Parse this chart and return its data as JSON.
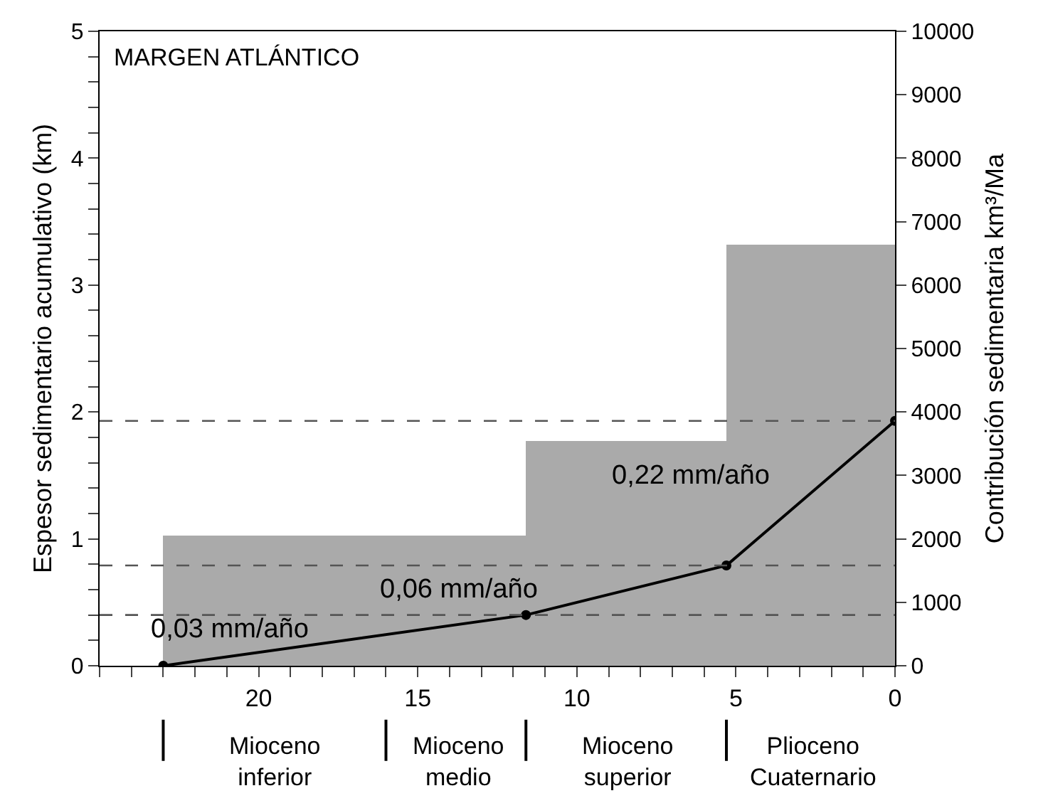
{
  "chart_data": {
    "type": "histogram",
    "title": "MARGEN ATLÁNTICO",
    "xlabel": null,
    "ylabel": "Espesor sedimentario acumulativo (km)",
    "y2label": "Contribución sedimentaria km³/Ma",
    "series": [
      {
        "axis": "y2",
        "color": "#aaaaaa",
        "bins": [
          23,
          11.6,
          5.3,
          0
        ],
        "values": [
          2050,
          3540,
          6640
        ]
      },
      {
        "type": "line",
        "color": "#000000",
        "marker": "circle",
        "line_style": "solid",
        "x": [
          23,
          11.6,
          5.3,
          0
        ],
        "values": [
          0,
          0.4,
          0.79,
          1.93
        ]
      }
    ],
    "ref_lines": [
      {
        "axis": "y",
        "value": 0.4,
        "color": "#555555",
        "line_style": "dashed"
      },
      {
        "axis": "y",
        "value": 0.79,
        "color": "#555555",
        "line_style": "dashed"
      },
      {
        "axis": "y",
        "value": 1.93,
        "color": "#555555",
        "line_style": "dashed"
      }
    ],
    "annotations": [
      "0,03 mm/año",
      "0,06 mm/año",
      "0,22 mm/año",
      "Mioceno inferior",
      "Mioceno medio",
      "Mioceno superior",
      "Plioceno Cuaternario"
    ],
    "xlim": [
      25,
      0
    ],
    "xticks": [
      {
        "value": 25,
        "label": null
      },
      {
        "value": 24,
        "label": null
      },
      {
        "value": 23,
        "label": null
      },
      {
        "value": 22,
        "label": null
      },
      {
        "value": 21,
        "label": null
      },
      20,
      {
        "value": 19,
        "label": null
      },
      {
        "value": 18,
        "label": null
      },
      {
        "value": 17,
        "label": null
      },
      {
        "value": 16,
        "label": null
      },
      15,
      {
        "value": 14,
        "label": null
      },
      {
        "value": 13,
        "label": null
      },
      {
        "value": 12,
        "label": null
      },
      {
        "value": 11,
        "label": null
      },
      10,
      {
        "value": 9,
        "label": null
      },
      {
        "value": 8,
        "label": null
      },
      {
        "value": 7,
        "label": null
      },
      {
        "value": 6,
        "label": null
      },
      5,
      {
        "value": 4,
        "label": null
      },
      {
        "value": 3,
        "label": null
      },
      {
        "value": 2,
        "label": null
      },
      {
        "value": 1,
        "label": null
      },
      0
    ],
    "ylim": [
      0,
      5
    ],
    "yticks": [
      0,
      {
        "value": 0.2,
        "label": null
      },
      {
        "value": 0.4,
        "label": null
      },
      {
        "value": 0.6,
        "label": null
      },
      {
        "value": 0.8,
        "label": null
      },
      1,
      {
        "value": 1.2,
        "label": null
      },
      {
        "value": 1.4,
        "label": null
      },
      {
        "value": 1.6,
        "label": null
      },
      {
        "value": 1.8,
        "label": null
      },
      2,
      {
        "value": 2.2,
        "label": null
      },
      {
        "value": 2.4,
        "label": null
      },
      {
        "value": 2.6,
        "label": null
      },
      {
        "value": 2.8,
        "label": null
      },
      3,
      {
        "value": 3.2,
        "label": null
      },
      {
        "value": 3.4,
        "label": null
      },
      {
        "value": 3.6,
        "label": null
      },
      {
        "value": 3.8,
        "label": null
      },
      4,
      {
        "value": 4.2,
        "label": null
      },
      {
        "value": 4.4,
        "label": null
      },
      {
        "value": 4.6,
        "label": null
      },
      {
        "value": 4.8,
        "label": null
      },
      5
    ],
    "y2lim": [
      0,
      10000
    ],
    "y2ticks": [
      0,
      1000,
      2000,
      3000,
      4000,
      5000,
      6000,
      7000,
      8000,
      9000,
      10000
    ],
    "grid": false,
    "legend": false
  }
}
